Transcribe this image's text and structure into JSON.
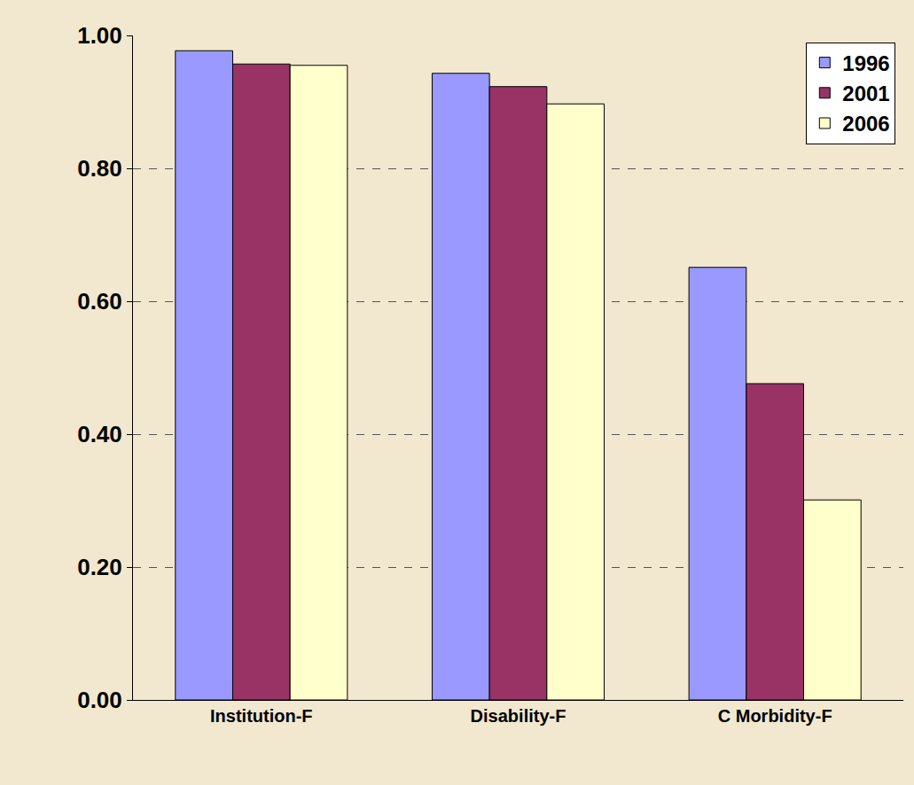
{
  "chart_data": {
    "type": "bar",
    "categories": [
      "Institution-F",
      "Disability-F",
      "C Morbidity-F"
    ],
    "series": [
      {
        "name": "1996",
        "color": "#9999ff",
        "values": [
          0.977,
          0.943,
          0.651
        ]
      },
      {
        "name": "2001",
        "color": "#993366",
        "values": [
          0.957,
          0.923,
          0.476
        ]
      },
      {
        "name": "2006",
        "color": "#ffffcc",
        "values": [
          0.955,
          0.897,
          0.301
        ]
      }
    ],
    "ylim": [
      0,
      1
    ],
    "yticks": [
      {
        "value": 0,
        "label": "0.00"
      },
      {
        "value": 0.2,
        "label": "0.20"
      },
      {
        "value": 0.4,
        "label": "0.40"
      },
      {
        "value": 0.6,
        "label": "0.60"
      },
      {
        "value": 0.8,
        "label": "0.80"
      },
      {
        "value": 1,
        "label": "1.00"
      }
    ],
    "grid": true,
    "legend": "top right"
  }
}
